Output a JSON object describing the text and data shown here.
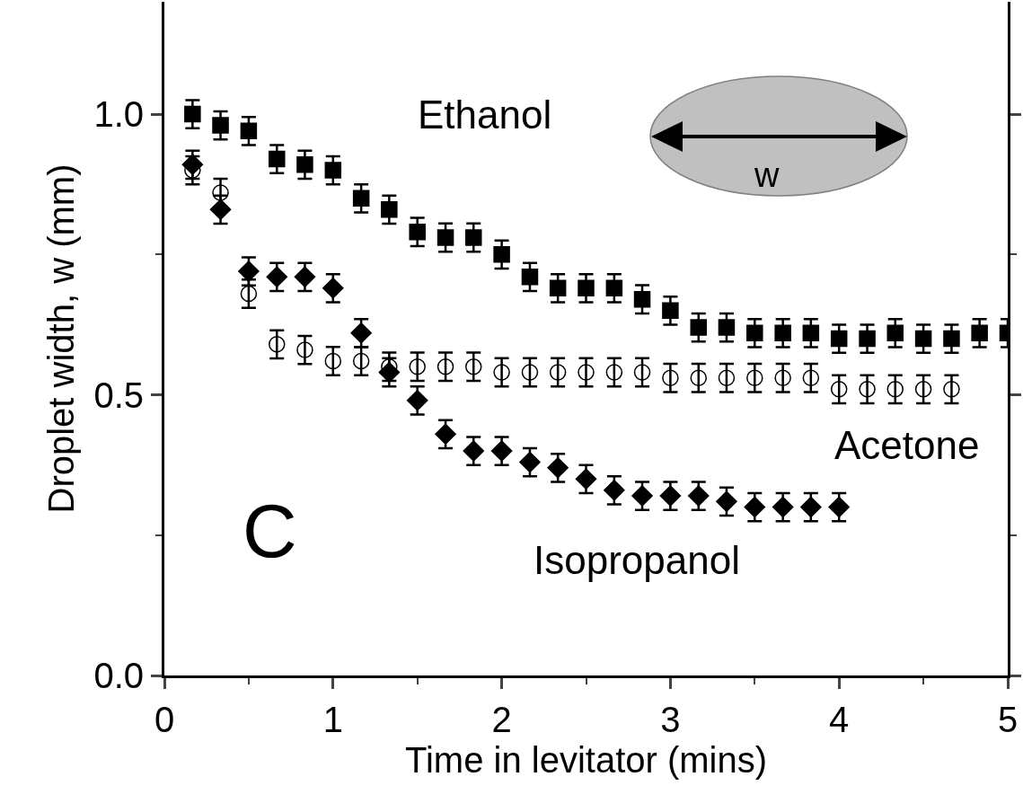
{
  "chart_data": {
    "type": "scatter",
    "xlabel": "Time in levitator (mins)",
    "ylabel": "Droplet width, w (mm)",
    "xlim": [
      0,
      5
    ],
    "xticks": [
      0,
      1,
      2,
      3,
      4,
      5
    ],
    "ylim": [
      0,
      1.2
    ],
    "yticks": [
      {
        "value": 0,
        "label": "0.0"
      },
      {
        "value": 0.5,
        "label": "0.5"
      },
      {
        "value": 1,
        "label": "1.0"
      }
    ],
    "grid": false,
    "legend": false,
    "annotations": [
      "C",
      "w"
    ],
    "series": [
      {
        "name": "Ethanol",
        "color": "#000000",
        "marker": "square",
        "x": [
          0.167,
          0.333,
          0.5,
          0.667,
          0.833,
          1,
          1.167,
          1.333,
          1.5,
          1.667,
          1.833,
          2,
          2.167,
          2.333,
          2.5,
          2.667,
          2.833,
          3,
          3.167,
          3.333,
          3.5,
          3.667,
          3.833,
          4,
          4.167,
          4.333,
          4.5,
          4.667,
          4.833,
          5
        ],
        "values": [
          1.0,
          0.98,
          0.97,
          0.92,
          0.91,
          0.9,
          0.85,
          0.83,
          0.79,
          0.78,
          0.78,
          0.75,
          0.71,
          0.69,
          0.69,
          0.69,
          0.67,
          0.65,
          0.62,
          0.62,
          0.61,
          0.61,
          0.61,
          0.6,
          0.6,
          0.61,
          0.6,
          0.6,
          0.61,
          0.61
        ],
        "errors": [
          0.025,
          0.025,
          0.025,
          0.025,
          0.025,
          0.025,
          0.025,
          0.025,
          0.025,
          0.025,
          0.025,
          0.025,
          0.025,
          0.025,
          0.025,
          0.025,
          0.025,
          0.025,
          0.025,
          0.025,
          0.025,
          0.025,
          0.025,
          0.025,
          0.025,
          0.025,
          0.025,
          0.025,
          0.025,
          0.025
        ]
      },
      {
        "name": "Acetone",
        "color": "#000000",
        "marker": "circle",
        "x": [
          0.167,
          0.333,
          0.5,
          0.667,
          0.833,
          1,
          1.167,
          1.333,
          1.5,
          1.667,
          1.833,
          2,
          2.167,
          2.333,
          2.5,
          2.667,
          2.833,
          3,
          3.167,
          3.333,
          3.5,
          3.667,
          3.833,
          4,
          4.167,
          4.333,
          4.5,
          4.667
        ],
        "values": [
          0.9,
          0.86,
          0.68,
          0.59,
          0.58,
          0.56,
          0.56,
          0.55,
          0.55,
          0.55,
          0.55,
          0.54,
          0.54,
          0.54,
          0.54,
          0.54,
          0.54,
          0.53,
          0.53,
          0.53,
          0.53,
          0.53,
          0.53,
          0.51,
          0.51,
          0.51,
          0.51,
          0.51
        ],
        "errors": [
          0.025,
          0.025,
          0.025,
          0.025,
          0.025,
          0.025,
          0.025,
          0.025,
          0.025,
          0.025,
          0.025,
          0.025,
          0.025,
          0.025,
          0.025,
          0.025,
          0.025,
          0.025,
          0.025,
          0.025,
          0.025,
          0.025,
          0.025,
          0.025,
          0.025,
          0.025,
          0.025,
          0.025
        ]
      },
      {
        "name": "Isopropanol",
        "color": "#000000",
        "marker": "diamond",
        "x": [
          0.167,
          0.333,
          0.5,
          0.667,
          0.833,
          1,
          1.167,
          1.333,
          1.5,
          1.667,
          1.833,
          2,
          2.167,
          2.333,
          2.5,
          2.667,
          2.833,
          3,
          3.167,
          3.333,
          3.5,
          3.667,
          3.833,
          4
        ],
        "values": [
          0.91,
          0.83,
          0.72,
          0.71,
          0.71,
          0.69,
          0.61,
          0.54,
          0.49,
          0.43,
          0.4,
          0.4,
          0.38,
          0.37,
          0.35,
          0.33,
          0.32,
          0.32,
          0.32,
          0.31,
          0.3,
          0.3,
          0.3,
          0.3
        ],
        "errors": [
          0.025,
          0.025,
          0.025,
          0.025,
          0.025,
          0.025,
          0.025,
          0.025,
          0.025,
          0.025,
          0.025,
          0.025,
          0.025,
          0.025,
          0.025,
          0.025,
          0.025,
          0.025,
          0.025,
          0.025,
          0.025,
          0.025,
          0.025,
          0.025
        ]
      }
    ]
  }
}
